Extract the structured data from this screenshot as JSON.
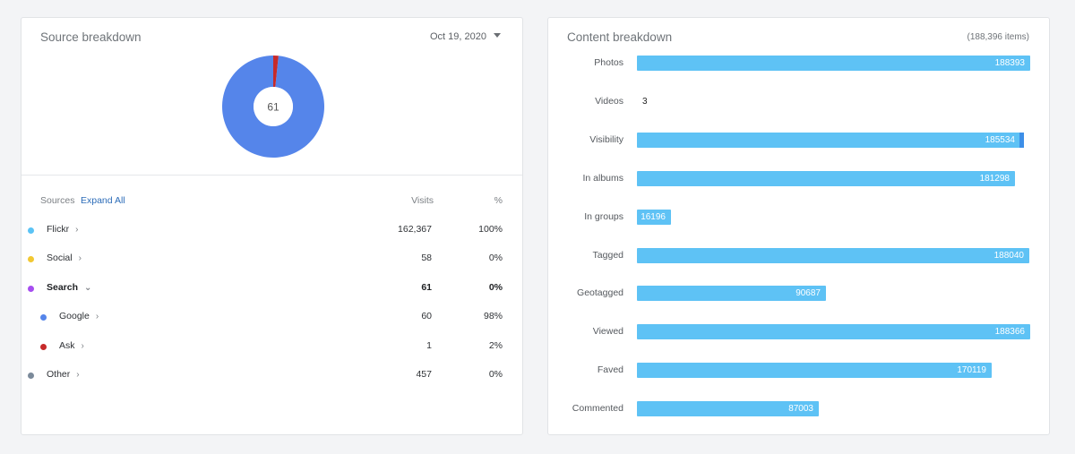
{
  "source_breakdown": {
    "title": "Source breakdown",
    "date": "Oct 19, 2020",
    "donut": {
      "center_value": "61",
      "segments": [
        {
          "name": "Google",
          "value": 60,
          "color": "#5585ea"
        },
        {
          "name": "Ask",
          "value": 1,
          "color": "#c62a2a"
        }
      ]
    },
    "table": {
      "sources_label": "Sources",
      "expand_all_label": "Expand All",
      "visits_label": "Visits",
      "pct_label": "%",
      "rows": [
        {
          "name": "Flickr",
          "visits": "162,367",
          "pct": "100%",
          "color": "#5bc3f5",
          "chevron": "›",
          "indent": false,
          "bold": false
        },
        {
          "name": "Social",
          "visits": "58",
          "pct": "0%",
          "color": "#f2c832",
          "chevron": "›",
          "indent": false,
          "bold": false
        },
        {
          "name": "Search",
          "visits": "61",
          "pct": "0%",
          "color": "#a64df0",
          "chevron": "⌄",
          "indent": false,
          "bold": true
        },
        {
          "name": "Google",
          "visits": "60",
          "pct": "98%",
          "color": "#5585ea",
          "chevron": "›",
          "indent": true,
          "bold": false
        },
        {
          "name": "Ask",
          "visits": "1",
          "pct": "2%",
          "color": "#c62a2a",
          "chevron": "›",
          "indent": true,
          "bold": false
        },
        {
          "name": "Other",
          "visits": "457",
          "pct": "0%",
          "color": "#7b8a9a",
          "chevron": "›",
          "indent": false,
          "bold": false
        }
      ]
    }
  },
  "content_breakdown": {
    "title": "Content breakdown",
    "total_label": "(188,396 items)",
    "chart_data": {
      "type": "bar",
      "orientation": "horizontal",
      "title": "Content breakdown",
      "max": 188396,
      "categories": [
        "Photos",
        "Videos",
        "Visibility",
        "In albums",
        "In groups",
        "Tagged",
        "Geotagged",
        "Viewed",
        "Faved",
        "Commented"
      ],
      "values": [
        188393,
        3,
        185534,
        181298,
        16196,
        188040,
        90687,
        188366,
        170119,
        87003
      ],
      "labels": [
        "188393",
        "3",
        "185534",
        "181298",
        "16196",
        "188040",
        "90687",
        "188366",
        "170119",
        "87003"
      ],
      "bar_color": "#5ec2f5",
      "accent_color": "#3d8fe8"
    }
  }
}
